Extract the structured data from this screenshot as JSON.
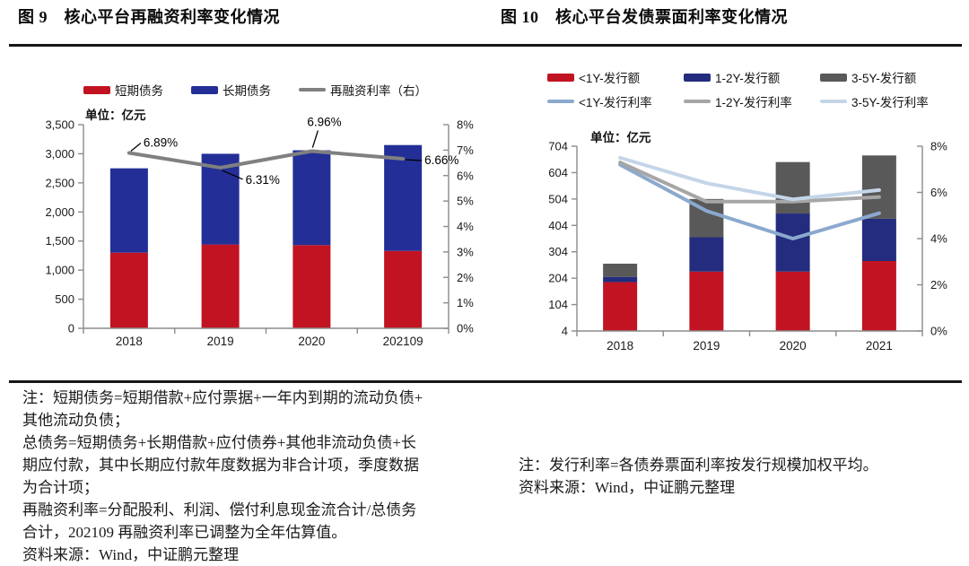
{
  "chart_data": [
    {
      "type": "bar",
      "subtype": "stacked-bar+line",
      "title": "图 9　核心平台再融资利率变化情况",
      "unit_label": "单位：亿元",
      "categories": [
        "2018",
        "2019",
        "2020",
        "202109"
      ],
      "bar_series": [
        {
          "name": "短期债务",
          "color": "#C11322",
          "values": [
            1300,
            1440,
            1430,
            1330
          ]
        },
        {
          "name": "长期债务",
          "color": "#232F96",
          "values": [
            1450,
            1560,
            1630,
            1820
          ]
        }
      ],
      "line_series": [
        {
          "name": "再融资利率（右）",
          "color": "#808080",
          "axis": "right",
          "values": [
            6.89,
            6.31,
            6.96,
            6.66
          ]
        }
      ],
      "left_axis": {
        "min": 0,
        "max": 3500,
        "step": 500,
        "labels": [
          "3,500",
          "3,000",
          "2,500",
          "2,000",
          "1,500",
          "1,000",
          "500",
          "0"
        ]
      },
      "right_axis": {
        "min": 0,
        "max": 8,
        "step": 1,
        "labels": [
          "8%",
          "7%",
          "6%",
          "5%",
          "4%",
          "3%",
          "2%",
          "1%",
          "0%"
        ]
      },
      "point_labels": [
        {
          "text": "6.89%",
          "cat": 0,
          "leader": [
            [
              2,
              -2
            ],
            [
              13,
              -11
            ]
          ],
          "label": [
            16,
            -7
          ]
        },
        {
          "text": "6.31%",
          "cat": 1,
          "leader": [
            [
              2,
              3
            ],
            [
              25,
              13
            ]
          ],
          "label": [
            28,
            18
          ]
        },
        {
          "text": "6.96%",
          "cat": 2,
          "leader": [
            [
              1,
              -4
            ],
            [
              7,
              -23
            ]
          ],
          "label": [
            -5,
            -28
          ]
        },
        {
          "text": "6.66%",
          "cat": 3,
          "leader": [
            [
              3,
              1
            ],
            [
              21,
              2
            ]
          ],
          "label": [
            24,
            6
          ]
        }
      ],
      "legend_rows": [
        [
          {
            "label": "短期债务",
            "color": "#C11322",
            "shape": "rect"
          },
          {
            "label": "长期债务",
            "color": "#232F96",
            "shape": "rect"
          },
          {
            "label": "再融资利率（右）",
            "color": "#808080",
            "shape": "line"
          }
        ]
      ],
      "legend_position": "top",
      "grid": false
    },
    {
      "type": "bar",
      "subtype": "stacked-bar+line",
      "title": "图 10　核心平台发债票面利率变化情况",
      "unit_label": "单位：亿元",
      "categories": [
        "2018",
        "2019",
        "2020",
        "2021"
      ],
      "bar_series": [
        {
          "name": "<1Y-发行额",
          "color": "#C11322",
          "values": [
            185,
            225,
            225,
            265
          ]
        },
        {
          "name": "1-2Y-发行额",
          "color": "#232C7E",
          "values": [
            20,
            130,
            220,
            160
          ]
        },
        {
          "name": "3-5Y-发行额",
          "color": "#595959",
          "values": [
            50,
            145,
            195,
            240
          ]
        }
      ],
      "line_series": [
        {
          "name": "<1Y-发行利率",
          "color": "#8BA9CE",
          "axis": "right",
          "values": [
            7.2,
            5.2,
            4.0,
            5.1
          ]
        },
        {
          "name": "1-2Y-发行利率",
          "color": "#A6A6A6",
          "axis": "right",
          "values": [
            7.3,
            5.6,
            5.6,
            5.8
          ]
        },
        {
          "name": "3-5Y-发行利率",
          "color": "#C4D5E8",
          "axis": "right",
          "values": [
            7.5,
            6.4,
            5.7,
            6.1
          ]
        }
      ],
      "left_axis": {
        "min": 4,
        "max": 704,
        "step": 100,
        "labels": [
          "704",
          "604",
          "504",
          "404",
          "304",
          "204",
          "104",
          "4"
        ]
      },
      "right_axis": {
        "min": 0,
        "max": 8,
        "step": 2,
        "labels": [
          "8%",
          "6%",
          "4%",
          "2%",
          "0%"
        ]
      },
      "point_labels": [],
      "legend_rows": [
        [
          {
            "label": "<1Y-发行额",
            "color": "#C11322",
            "shape": "rect"
          },
          {
            "label": "1-2Y-发行额",
            "color": "#232C7E",
            "shape": "rect"
          },
          {
            "label": "3-5Y-发行额",
            "color": "#595959",
            "shape": "rect"
          }
        ],
        [
          {
            "label": "<1Y-发行利率",
            "color": "#8BA9CE",
            "shape": "line"
          },
          {
            "label": "1-2Y-发行利率",
            "color": "#A6A6A6",
            "shape": "line"
          },
          {
            "label": "3-5Y-发行利率",
            "color": "#C4D5E8",
            "shape": "line"
          }
        ]
      ],
      "legend_position": "top",
      "grid": false
    }
  ],
  "notes_left": {
    "lines": [
      "注：短期债务=短期借款+应付票据+一年内到期的流动负债+",
      "其他流动负债；",
      "总债务=短期债务+长期借款+应付债券+其他非流动负债+长",
      "期应付款，其中长期应付款年度数据为非合计项，季度数据",
      "为合计项；",
      "再融资利率=分配股利、利润、偿付利息现金流合计/总债务",
      "合计，202109 再融资利率已调整为全年估算值。",
      "资料来源：Wind，中证鹏元整理"
    ]
  },
  "notes_right": {
    "lines": [
      "注：发行利率=各债券票面利率按发行规模加权平均。",
      "资料来源：Wind，中证鹏元整理"
    ]
  }
}
